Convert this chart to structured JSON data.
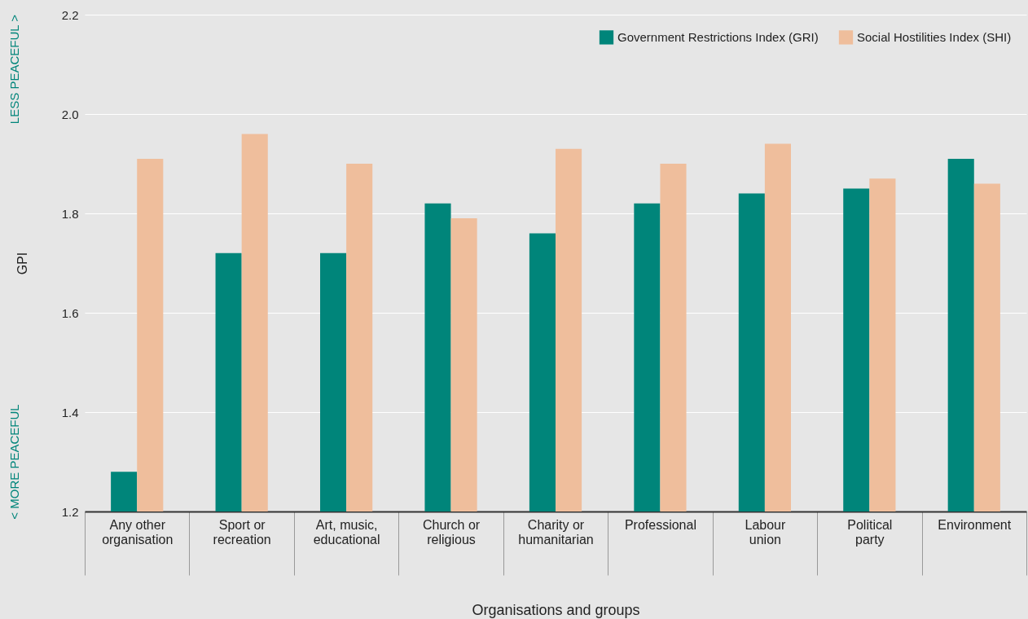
{
  "chart_data": {
    "type": "bar",
    "xlabel": "Organisations and groups",
    "ylabel": "GPI",
    "categories": [
      "Any other organisation",
      "Sport or recreation",
      "Art, music, educational",
      "Church or religious",
      "Charity or humanitarian",
      "Professional",
      "Labour union",
      "Political party",
      "Environment"
    ],
    "series": [
      {
        "name": "Government Restrictions Index (GRI)",
        "color": "#00857a",
        "values": [
          1.28,
          1.72,
          1.72,
          1.82,
          1.76,
          1.82,
          1.84,
          1.85,
          1.91
        ]
      },
      {
        "name": "Social Hostilities Index (SHI)",
        "color": "#efbe9c",
        "values": [
          1.91,
          1.96,
          1.9,
          1.79,
          1.93,
          1.9,
          1.94,
          1.87,
          1.86
        ]
      }
    ],
    "ylim": [
      1.2,
      2.2
    ],
    "yticks": [
      1.2,
      1.4,
      1.6,
      1.8,
      {
        "value": 2,
        "label": "2.0"
      },
      2.2
    ],
    "grid": "y",
    "legend": "top right",
    "annotations": [
      "LESS PEACEFUL >",
      "< MORE PEACEFUL"
    ]
  }
}
